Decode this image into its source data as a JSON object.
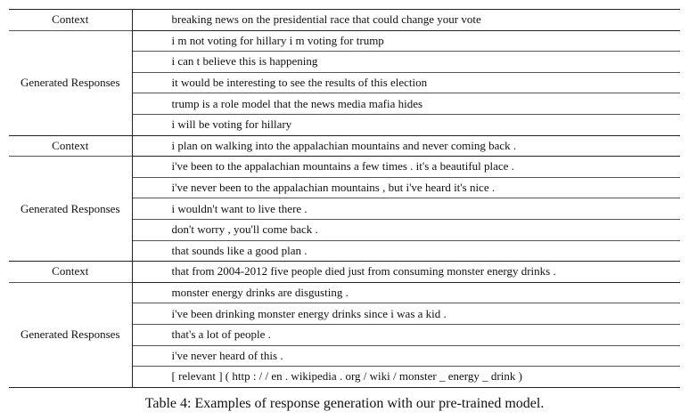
{
  "table": {
    "context_label": "Context",
    "responses_label": "Generated Responses",
    "groups": [
      {
        "context": "breaking news on the presidential race that could change your vote",
        "responses": [
          "i m not voting for hillary i m voting for trump",
          "i can t believe this is happening",
          "it would be interesting to see the results of this election",
          "trump is a role model that the news media mafia hides",
          "i will be voting for hillary"
        ]
      },
      {
        "context": "i plan on walking into the appalachian mountains and never coming back .",
        "responses": [
          "i've been to the appalachian mountains a few times . it's a beautiful place .",
          "i've never been to the appalachian mountains , but i've heard it's nice .",
          "i wouldn't want to live there .",
          "don't worry , you'll come back .",
          "that sounds like a good plan ."
        ]
      },
      {
        "context": "that from 2004-2012 five people died just from consuming monster energy drinks .",
        "responses": [
          "monster energy drinks are disgusting .",
          "i've been drinking monster energy drinks since i was a kid .",
          "that's a lot of people .",
          "i've never heard of this .",
          "[ relevant ] ( http : / / en . wikipedia . org / wiki / monster _ energy _ drink )"
        ]
      }
    ]
  },
  "caption": "Table 4: Examples of response generation with our pre-trained model."
}
